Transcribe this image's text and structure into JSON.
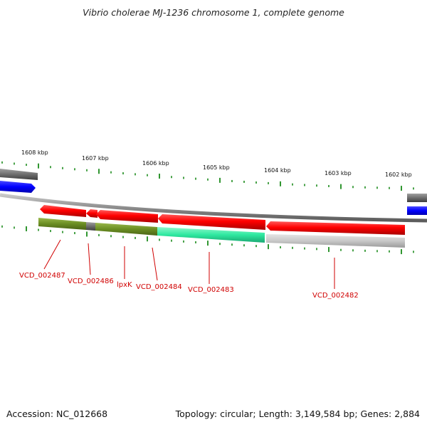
{
  "header": {
    "title": "Vibrio cholerae MJ-1236 chromosome 1, complete genome"
  },
  "footer": {
    "accession": "Accession: NC_012668",
    "summary": "Topology: circular; Length: 3,149,584 bp; Genes: 2,884"
  },
  "scale": {
    "ticks": [
      "1608 kbp",
      "1607 kbp",
      "1606 kbp",
      "1605 kbp",
      "1604 kbp",
      "1603 kbp",
      "1602 kbp"
    ]
  },
  "genes": [
    {
      "label": "VCD_002487",
      "color": "#6b8e23"
    },
    {
      "label": "VCD_002486",
      "color": "#6b8e23"
    },
    {
      "label": "lpxK",
      "color": "#6b8e23"
    },
    {
      "label": "VCD_002484",
      "color": "#6b8e23"
    },
    {
      "label": "VCD_002483",
      "color": "#2ee8a0"
    },
    {
      "label": "VCD_002482",
      "color": "#c8c8c8"
    }
  ],
  "colors": {
    "cds": "#ff0000",
    "label": "#d00000",
    "backbone": "#909090",
    "tick": "#1a8a1a",
    "other_strand": "#0000ff",
    "gray_feature": "#6e6e6e"
  }
}
